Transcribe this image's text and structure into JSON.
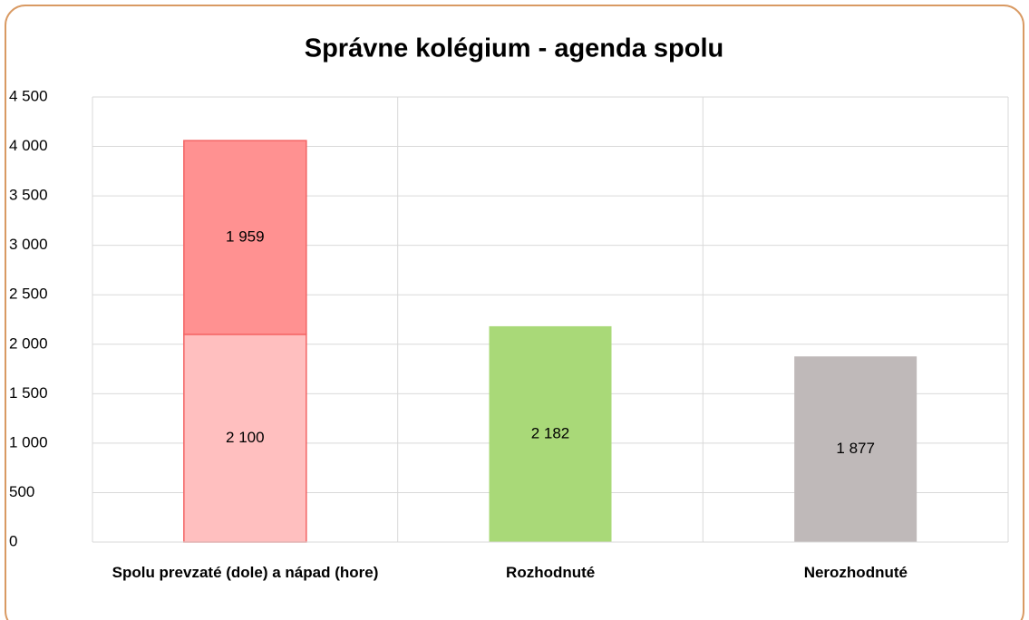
{
  "chart_data": {
    "type": "stacked_bar",
    "title": "Správne kolégium - agenda spolu",
    "categories": [
      "Spolu prevzaté (dole) a nápad (hore)",
      "Rozhodnuté",
      "Nerozhodnuté"
    ],
    "series": [
      {
        "values": [
          2100,
          2182,
          1877
        ],
        "value_labels": [
          "2 100",
          "2 182",
          "1 877"
        ],
        "colors": [
          "#ffbfbf",
          "#a9d978",
          "#bfb9b9"
        ]
      },
      {
        "values": [
          1959,
          null,
          null
        ],
        "value_labels": [
          "1 959",
          null,
          null
        ],
        "colors": [
          "#ff9191",
          null,
          null
        ]
      }
    ],
    "ylim": [
      0,
      4500
    ],
    "yticks": [
      0,
      500,
      {
        "value": 1000,
        "label": "1 000"
      },
      {
        "value": 1500,
        "label": "1 500"
      },
      {
        "value": 2000,
        "label": "2 000"
      },
      {
        "value": 2500,
        "label": "2 500"
      },
      {
        "value": 3000,
        "label": "3 000"
      },
      {
        "value": 3500,
        "label": "3 500"
      },
      {
        "value": 4000,
        "label": "4 000"
      },
      {
        "value": 4500,
        "label": "4 500"
      }
    ],
    "grid": true
  }
}
